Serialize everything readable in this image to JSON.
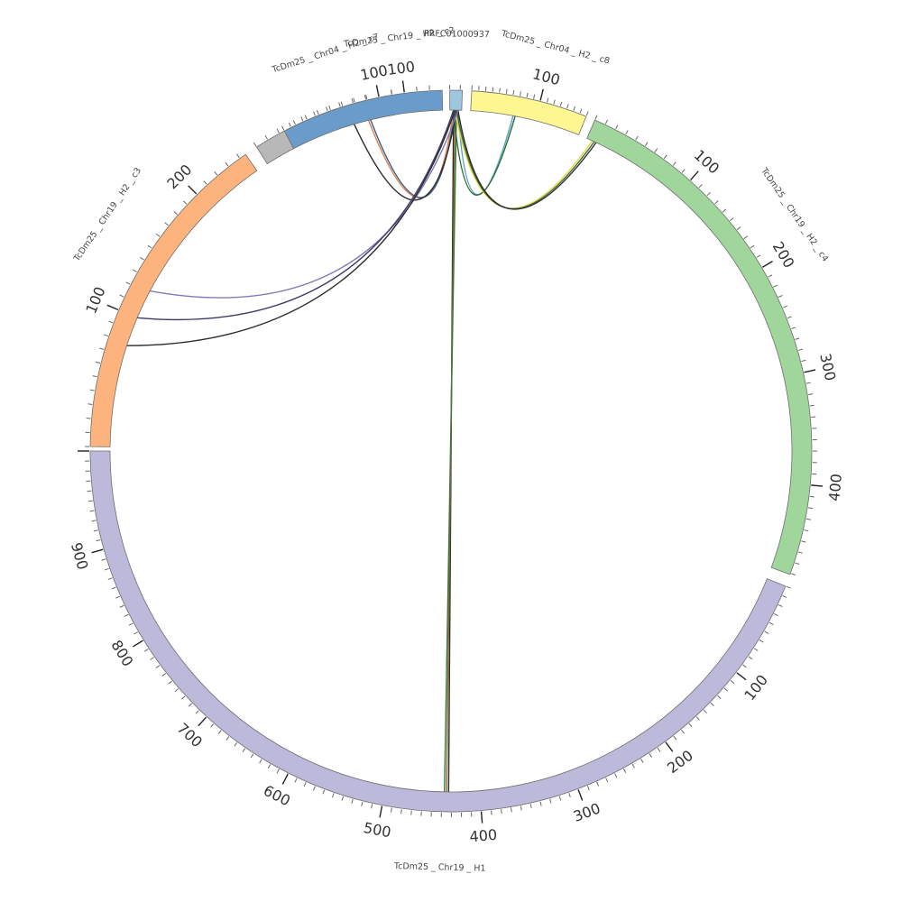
{
  "segments": [
    {
      "name": "TcDm25_Chr19_H1",
      "label": "TcDm25 _ Chr19 _ H1",
      "color": "#bcb9da",
      "length": 1000,
      "major_labels": [
        "100",
        "200",
        "300",
        "400",
        "500",
        "600",
        "700",
        "800",
        "900"
      ]
    },
    {
      "name": "TcDm25_Chr19_H2_c3",
      "label": "TcDm25 _ Chr19 _ H2 _ c3",
      "color": "#fdb37d",
      "length": 245,
      "major_labels": [
        "100",
        "200"
      ]
    },
    {
      "name": "TcDm25_Chr04_H2_c7",
      "label": "TcDm25 _ Chr04 _ H2 _ c7",
      "color": "#b8b8b8",
      "length": 110,
      "major_labels": [
        "100"
      ]
    },
    {
      "name": "TcDm25_Chr19_H2_c2",
      "label": "TcDm25 _ Chr19 _ H2 _ c2",
      "color": "#6a9ccb",
      "length": 130,
      "major_labels": [
        "100"
      ]
    },
    {
      "name": "PRFC01000937",
      "label": "PRFC01000937",
      "color": "#9dc7df",
      "length": 12,
      "major_labels": []
    },
    {
      "name": "TcDm25_Chr04_H2_c8",
      "label": "TcDm25 _ Chr04 _ H2 _ c8",
      "color": "#fef690",
      "length": 170,
      "major_labels": [
        "100"
      ]
    },
    {
      "name": "TcDm25_Chr19_H2_c4",
      "label": "TcDm25 _ Chr19 _ H2 _ c4",
      "color": "#a0d59c",
      "length": 480,
      "major_labels": [
        "100",
        "200",
        "300",
        "400"
      ]
    }
  ],
  "links": [
    {
      "from": "PRFC01000937",
      "to": "TcDm25_Chr19_H1",
      "color": "#2c2c2c"
    },
    {
      "from": "PRFC01000937",
      "to": "TcDm25_Chr19_H1",
      "color": "#8a6a2f"
    },
    {
      "from": "PRFC01000937",
      "to": "TcDm25_Chr19_H1",
      "color": "#3a7a3a"
    },
    {
      "from": "PRFC01000937",
      "to": "TcDm25_Chr04_H2_c8",
      "color": "#5aa0c8"
    },
    {
      "from": "PRFC01000937",
      "to": "TcDm25_Chr04_H2_c8",
      "color": "#2c6e2c"
    },
    {
      "from": "PRFC01000937",
      "to": "TcDm25_Chr19_H2_c4",
      "color": "#e8d840"
    },
    {
      "from": "PRFC01000937",
      "to": "TcDm25_Chr19_H2_c4",
      "color": "#3c6a3c"
    },
    {
      "from": "PRFC01000937",
      "to": "TcDm25_Chr19_H2_c4",
      "color": "#2c2c2c"
    },
    {
      "from": "PRFC01000937",
      "to": "TcDm25_Chr19_H2_c2",
      "color": "#e0804a"
    },
    {
      "from": "PRFC01000937",
      "to": "TcDm25_Chr19_H2_c2",
      "color": "#3a5a8a"
    },
    {
      "from": "PRFC01000937",
      "to": "TcDm25_Chr04_H2_c7",
      "color": "#2c2c2c"
    },
    {
      "from": "PRFC01000937",
      "to": "TcDm25_Chr19_H2_c3",
      "color": "#7e7cb8"
    },
    {
      "from": "PRFC01000937",
      "to": "TcDm25_Chr19_H2_c3",
      "color": "#3a3a6a"
    },
    {
      "from": "PRFC01000937",
      "to": "TcDm25_Chr19_H2_c3",
      "color": "#2c2c2c"
    }
  ]
}
